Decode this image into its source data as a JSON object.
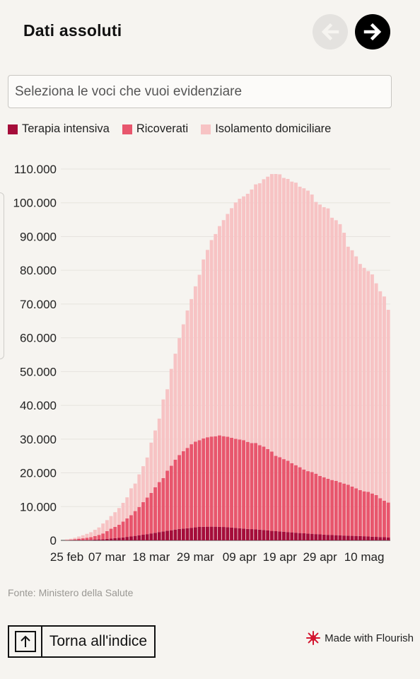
{
  "header": {
    "title": "Dati assoluti",
    "prev_icon": "arrow-left-icon",
    "next_icon": "arrow-right-icon"
  },
  "search": {
    "placeholder": "Seleziona le voci che vuoi evidenziare",
    "value": ""
  },
  "legend": [
    {
      "label": "Terapia intensiva",
      "color": "#a50d3a"
    },
    {
      "label": "Ricoverati",
      "color": "#e8566d"
    },
    {
      "label": "Isolamento domiciliare",
      "color": "#f7c3c4"
    }
  ],
  "chart_data": {
    "type": "bar",
    "stacked": true,
    "title": "Dati assoluti",
    "xlabel": "",
    "ylabel": "",
    "ylim": [
      0,
      110000
    ],
    "y_ticks": [
      0,
      10000,
      20000,
      30000,
      40000,
      50000,
      60000,
      70000,
      80000,
      90000,
      100000,
      110000
    ],
    "y_tick_labels": [
      "0",
      "10.000",
      "20.000",
      "30.000",
      "40.000",
      "50.000",
      "60.000",
      "70.000",
      "80.000",
      "90.000",
      "100.000",
      "110.000"
    ],
    "x_tick_labels": [
      "25 feb",
      "07 mar",
      "18 mar",
      "29 mar",
      "09 apr",
      "19 apr",
      "29 apr",
      "10 mag"
    ],
    "x_tick_indices": [
      1,
      11,
      22,
      33,
      44,
      54,
      64,
      75
    ],
    "grid": true,
    "categories_count": 82,
    "series": [
      {
        "name": "Terapia intensiva",
        "color": "#a50d3a",
        "values": [
          0,
          35,
          40,
          60,
          100,
          115,
          150,
          165,
          230,
          295,
          350,
          460,
          570,
          650,
          730,
          880,
          1030,
          1150,
          1330,
          1530,
          1670,
          1850,
          2060,
          2250,
          2470,
          2650,
          2860,
          3000,
          3200,
          3400,
          3500,
          3600,
          3730,
          3860,
          3980,
          4020,
          4050,
          4060,
          4050,
          4000,
          3970,
          3900,
          3800,
          3700,
          3600,
          3500,
          3380,
          3340,
          3260,
          3180,
          3080,
          2940,
          2810,
          2730,
          2640,
          2570,
          2470,
          2380,
          2270,
          2170,
          2100,
          2010,
          1950,
          1860,
          1790,
          1700,
          1640,
          1580,
          1540,
          1480,
          1430,
          1400,
          1340,
          1320,
          1280,
          1230,
          1160,
          1090,
          1040,
          1000,
          950,
          900
        ]
      },
      {
        "name": "Ricoverati",
        "color": "#e8566d",
        "values": [
          0,
          100,
          150,
          250,
          400,
          500,
          640,
          800,
          1060,
          1330,
          1700,
          2290,
          2880,
          3340,
          3900,
          4680,
          5470,
          6320,
          7350,
          8370,
          9660,
          10850,
          12000,
          13500,
          14800,
          15800,
          17800,
          19100,
          20700,
          21900,
          22900,
          23800,
          24750,
          25400,
          25700,
          26200,
          26500,
          26700,
          26800,
          27100,
          26900,
          26800,
          26600,
          26400,
          26300,
          26200,
          25800,
          25500,
          25600,
          25000,
          24700,
          24100,
          23500,
          22300,
          22000,
          21500,
          21100,
          20500,
          20000,
          19500,
          18900,
          18500,
          18300,
          17900,
          17300,
          17000,
          16600,
          16300,
          16100,
          15700,
          15400,
          15100,
          14600,
          14100,
          13600,
          13300,
          13200,
          12800,
          12400,
          11500,
          10800,
          10300
        ]
      },
      {
        "name": "Isolamento domiciliare",
        "color": "#f7c3c4",
        "values": [
          0,
          150,
          300,
          450,
          650,
          900,
          1150,
          1450,
          1850,
          2200,
          2950,
          3250,
          3750,
          4350,
          4950,
          5550,
          6250,
          7950,
          8150,
          9650,
          10650,
          11850,
          14900,
          16800,
          18800,
          23300,
          24100,
          28700,
          31400,
          34600,
          37600,
          40700,
          43000,
          46000,
          49000,
          53000,
          55500,
          58200,
          59900,
          62000,
          64000,
          66000,
          68000,
          70000,
          71300,
          72200,
          73500,
          75100,
          76600,
          77600,
          79200,
          80700,
          82200,
          83500,
          83800,
          83300,
          83500,
          83400,
          83700,
          83100,
          83300,
          83100,
          82200,
          80500,
          80400,
          80000,
          80100,
          77700,
          77200,
          76500,
          74300,
          70500,
          70000,
          68700,
          67000,
          66200,
          65400,
          64900,
          62700,
          61300,
          60500,
          57100
        ]
      }
    ]
  },
  "source": "Fonte: Ministero della Salute",
  "back_button": {
    "label": "Torna all'indice",
    "icon": "arrow-up-icon"
  },
  "branding": {
    "label": "Made with Flourish",
    "icon": "flourish-logo-icon"
  }
}
